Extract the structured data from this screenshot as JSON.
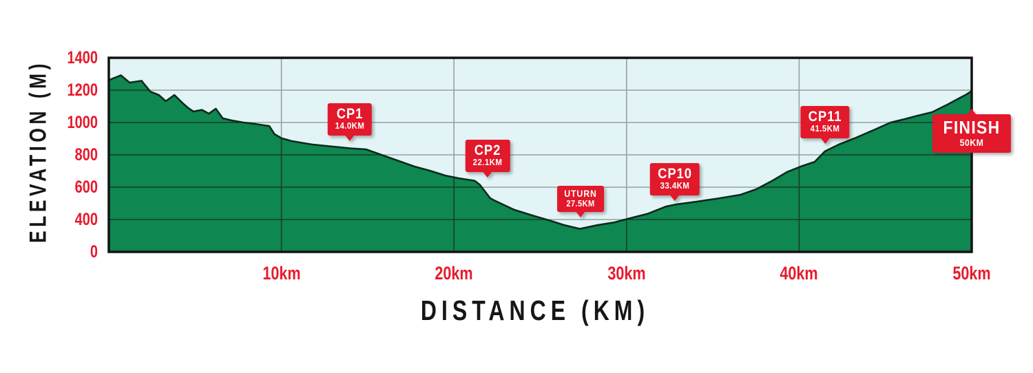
{
  "chart_data": {
    "type": "area",
    "title": "",
    "x_axis_title": "DISTANCE (KM)",
    "y_axis_title": "ELEVATION (M)",
    "xlim": [
      0,
      50
    ],
    "grid": true,
    "legend": false,
    "x_ticks": [
      {
        "km": 10,
        "label": "10km"
      },
      {
        "km": 20,
        "label": "20km"
      },
      {
        "km": 30,
        "label": "30km"
      },
      {
        "km": 40,
        "label": "40km"
      },
      {
        "km": 50,
        "label": "50km"
      }
    ],
    "y_ticks": [
      {
        "value": 1400,
        "label": "1400"
      },
      {
        "value": 1200,
        "label": "1200"
      },
      {
        "value": 1000,
        "label": "1000"
      },
      {
        "value": 800,
        "label": "800"
      },
      {
        "value": 600,
        "label": "600"
      },
      {
        "value": 400,
        "label": "400"
      },
      {
        "value": 0,
        "label": "0"
      }
    ],
    "profile_km_elevation_m": [
      [
        0,
        1262
      ],
      [
        0.7,
        1292
      ],
      [
        1.2,
        1247
      ],
      [
        1.9,
        1258
      ],
      [
        2.4,
        1192
      ],
      [
        2.9,
        1170
      ],
      [
        3.3,
        1132
      ],
      [
        3.8,
        1170
      ],
      [
        4.3,
        1118
      ],
      [
        4.6,
        1090
      ],
      [
        4.9,
        1068
      ],
      [
        5.4,
        1078
      ],
      [
        5.8,
        1055
      ],
      [
        6.2,
        1085
      ],
      [
        6.6,
        1026
      ],
      [
        7.1,
        1013
      ],
      [
        7.8,
        1000
      ],
      [
        8.5,
        991
      ],
      [
        9.3,
        978
      ],
      [
        9.6,
        928
      ],
      [
        10,
        903
      ],
      [
        10.6,
        885
      ],
      [
        11.8,
        864
      ],
      [
        13.4,
        847
      ],
      [
        14,
        840
      ],
      [
        14.9,
        834
      ],
      [
        15.8,
        800
      ],
      [
        16.7,
        766
      ],
      [
        17.7,
        728
      ],
      [
        18.6,
        702
      ],
      [
        19.5,
        672
      ],
      [
        20.3,
        655
      ],
      [
        21.2,
        640
      ],
      [
        21.5,
        615
      ],
      [
        22.1,
        532
      ],
      [
        22.3,
        520
      ],
      [
        23.5,
        460
      ],
      [
        24.8,
        417
      ],
      [
        25.6,
        385
      ],
      [
        26.4,
        330
      ],
      [
        27.3,
        285
      ],
      [
        28.3,
        330
      ],
      [
        29.3,
        365
      ],
      [
        30.1,
        405
      ],
      [
        31.2,
        435
      ],
      [
        32.3,
        481
      ],
      [
        32.9,
        494
      ],
      [
        34.1,
        511
      ],
      [
        35.4,
        532
      ],
      [
        36.6,
        553
      ],
      [
        37.5,
        587
      ],
      [
        38.5,
        643
      ],
      [
        39.3,
        694
      ],
      [
        40.1,
        728
      ],
      [
        40.9,
        757
      ],
      [
        41.5,
        822
      ],
      [
        42.3,
        864
      ],
      [
        43.3,
        906
      ],
      [
        44.4,
        957
      ],
      [
        45.3,
        1000
      ],
      [
        46.1,
        1021
      ],
      [
        46.9,
        1043
      ],
      [
        47.7,
        1064
      ],
      [
        48.1,
        1085
      ],
      [
        48.6,
        1111
      ],
      [
        49.1,
        1140
      ],
      [
        49.7,
        1174
      ],
      [
        50,
        1195
      ]
    ],
    "checkpoints": [
      {
        "name": "cp1",
        "label": "CP1",
        "distance_label": "14.0KM",
        "km": 14.0,
        "anchor": {
          "km": 13.95,
          "elev": 885
        },
        "tail": "down",
        "size": "cp"
      },
      {
        "name": "cp2",
        "label": "CP2",
        "distance_label": "22.1KM",
        "km": 22.1,
        "anchor": {
          "km": 21.95,
          "elev": 660
        },
        "tail": "down",
        "size": "cp"
      },
      {
        "name": "uturn",
        "label": "UTURN",
        "distance_label": "27.5KM",
        "km": 27.5,
        "anchor": {
          "km": 27.35,
          "elev": 413
        },
        "tail": "down",
        "size": "small"
      },
      {
        "name": "cp10",
        "label": "CP10",
        "distance_label": "33.4KM",
        "km": 33.4,
        "anchor": {
          "km": 32.8,
          "elev": 515
        },
        "tail": "down",
        "size": "cp"
      },
      {
        "name": "cp11",
        "label": "CP11",
        "distance_label": "41.5KM",
        "km": 41.5,
        "anchor": {
          "km": 41.5,
          "elev": 868
        },
        "tail": "down",
        "size": "cp"
      },
      {
        "name": "finish",
        "label": "FINISH",
        "distance_label": "50KM",
        "km": 50,
        "anchor": {
          "km": 50,
          "elev": 1085
        },
        "tail": "up",
        "size": "large"
      }
    ],
    "colors": {
      "plot_bg": "#e2f4f6",
      "area_fill": "#0e8750",
      "area_outline": "#0c2a1b",
      "grid": "#96a1a1",
      "grid_on_area": "#173c2a",
      "border": "#121212",
      "axis_tick_text": "#e8192b",
      "axis_title_text": "#161616",
      "marker_bg": "#e2182b",
      "marker_text": "#ffffff"
    }
  }
}
